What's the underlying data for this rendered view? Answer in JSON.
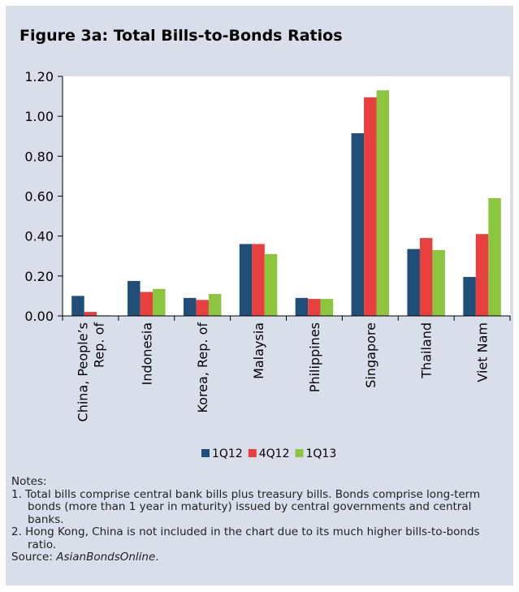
{
  "figure": {
    "title": "Figure 3a: Total Bills-to-Bonds Ratios"
  },
  "chart_data": {
    "type": "bar",
    "title": "Figure 3a: Total Bills-to-Bonds Ratios",
    "xlabel": "",
    "ylabel": "",
    "ylim": [
      0,
      1.2
    ],
    "yticks": [
      "0.00",
      "0.20",
      "0.40",
      "0.60",
      "0.80",
      "1.00",
      "1.20"
    ],
    "categories": [
      "China, People's Rep. of",
      "Indonesia",
      "Korea, Rep. of",
      "Malaysia",
      "Philippines",
      "Singapore",
      "Thailand",
      "Viet Nam"
    ],
    "category_lines": [
      [
        "China, People’s",
        "Rep. of"
      ],
      [
        "Indonesia"
      ],
      [
        "Korea, Rep. of"
      ],
      [
        "Malaysia"
      ],
      [
        "Philippines"
      ],
      [
        "Singapore"
      ],
      [
        "Thailand"
      ],
      [
        "Viet Nam"
      ]
    ],
    "series": [
      {
        "name": "1Q12",
        "color": "#1f4e79",
        "values": [
          0.1,
          0.175,
          0.09,
          0.36,
          0.09,
          0.915,
          0.335,
          0.195
        ]
      },
      {
        "name": "4Q12",
        "color": "#e8403f",
        "values": [
          0.02,
          0.12,
          0.08,
          0.36,
          0.085,
          1.095,
          0.39,
          0.41
        ]
      },
      {
        "name": "1Q13",
        "color": "#8cc63f",
        "values": [
          0.003,
          0.135,
          0.11,
          0.31,
          0.085,
          1.13,
          0.33,
          0.59
        ]
      }
    ],
    "grid": false,
    "legend": "bottom-center"
  },
  "notes": {
    "heading": "Notes:",
    "items": [
      "1. Total bills comprise central bank bills plus treasury bills. Bonds comprise long-term bonds (more than 1 year in maturity) issued by central governments and central banks.",
      "2. Hong Kong, China is not included in the chart due to its much higher bills-to-bonds ratio."
    ],
    "source_label": "Source: ",
    "source_name": "AsianBondsOnline",
    "source_end": "."
  }
}
